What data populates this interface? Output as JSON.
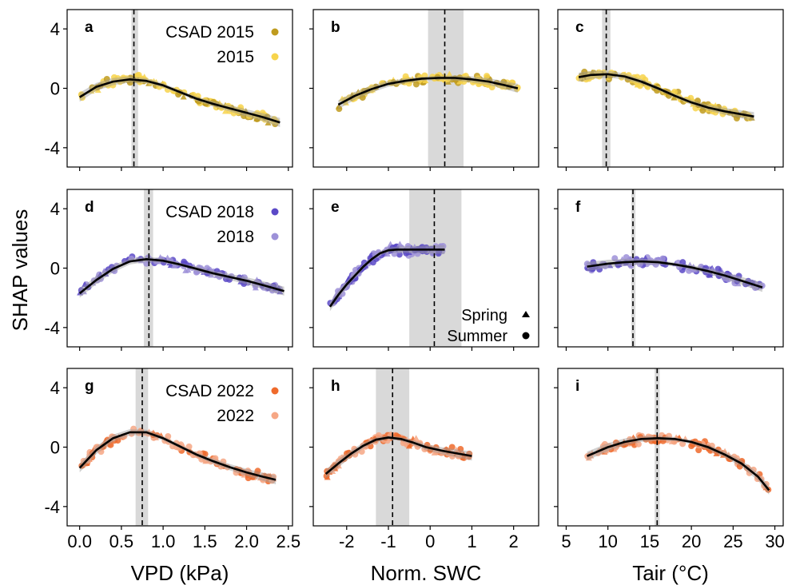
{
  "figure": {
    "ylabel": "SHAP values",
    "xlabels": [
      "VPD (kPa)",
      "Norm. SWC",
      "Tair (°C)"
    ],
    "shape_legend": {
      "spring": "Spring",
      "summer": "Summer"
    }
  },
  "colors": {
    "2015_csad": "#bf9b1e",
    "2015": "#f7d44c",
    "2018_csad": "#5b49c7",
    "2018": "#9d91d8",
    "2022_csad": "#ef6a2c",
    "2022": "#f6a785",
    "fit": "#000000",
    "band": "#d9d9d9"
  },
  "chart_data": [
    {
      "type": "scatter",
      "panel": "a",
      "row_year": "2015",
      "x_var": "VPD (kPa)",
      "threshold": 0.65,
      "threshold_band": [
        0.62,
        0.7
      ],
      "xlim": [
        -0.15,
        2.55
      ],
      "ylim": [
        -5.3,
        5.3
      ],
      "legend": [
        "CSAD 2015",
        "2015"
      ],
      "fit_x": [
        0,
        0.2,
        0.4,
        0.6,
        0.8,
        1.0,
        1.2,
        1.4,
        1.6,
        1.8,
        2.0,
        2.2,
        2.4
      ],
      "fit_y": [
        -0.6,
        0.1,
        0.45,
        0.6,
        0.5,
        0.2,
        -0.25,
        -0.7,
        -1.05,
        -1.35,
        -1.65,
        -1.95,
        -2.3
      ]
    },
    {
      "type": "scatter",
      "panel": "b",
      "row_year": "2015",
      "x_var": "Norm. SWC",
      "threshold": 0.35,
      "threshold_band": [
        -0.05,
        0.8
      ],
      "xlim": [
        -2.8,
        2.6
      ],
      "ylim": [
        -5.3,
        5.3
      ],
      "fit_x": [
        -2.2,
        -1.8,
        -1.4,
        -1.0,
        -0.6,
        -0.2,
        0.2,
        0.6,
        1.0,
        1.4,
        1.8,
        2.1
      ],
      "fit_y": [
        -1.1,
        -0.5,
        -0.05,
        0.3,
        0.5,
        0.65,
        0.7,
        0.7,
        0.6,
        0.45,
        0.2,
        0.0
      ]
    },
    {
      "type": "scatter",
      "panel": "c",
      "row_year": "2015",
      "x_var": "Tair (°C)",
      "threshold": 9.8,
      "threshold_band": [
        9.3,
        10.3
      ],
      "xlim": [
        4.0,
        31.0
      ],
      "ylim": [
        -5.3,
        5.3
      ],
      "fit_x": [
        6.5,
        8,
        10,
        12,
        14,
        16,
        18,
        20,
        22,
        24,
        26,
        27.5
      ],
      "fit_y": [
        0.75,
        0.9,
        0.95,
        0.8,
        0.45,
        0.0,
        -0.5,
        -0.95,
        -1.3,
        -1.55,
        -1.75,
        -1.9
      ]
    },
    {
      "type": "scatter",
      "panel": "d",
      "row_year": "2018",
      "x_var": "VPD (kPa)",
      "threshold": 0.83,
      "threshold_band": [
        0.77,
        0.88
      ],
      "xlim": [
        -0.15,
        2.55
      ],
      "ylim": [
        -5.3,
        5.3
      ],
      "legend": [
        "CSAD 2018",
        "2018"
      ],
      "fit_x": [
        0,
        0.2,
        0.4,
        0.6,
        0.8,
        1.0,
        1.2,
        1.4,
        1.6,
        1.8,
        2.0,
        2.2,
        2.45
      ],
      "fit_y": [
        -1.7,
        -0.8,
        -0.05,
        0.45,
        0.6,
        0.5,
        0.25,
        -0.05,
        -0.35,
        -0.6,
        -0.85,
        -1.15,
        -1.55
      ]
    },
    {
      "type": "scatter",
      "panel": "e",
      "row_year": "2018",
      "x_var": "Norm. SWC",
      "threshold": 0.1,
      "threshold_band": [
        -0.5,
        0.75
      ],
      "xlim": [
        -2.8,
        2.6
      ],
      "ylim": [
        -5.3,
        5.3
      ],
      "shape_legend": true,
      "fit_x": [
        -2.4,
        -2.2,
        -2.0,
        -1.8,
        -1.6,
        -1.4,
        -1.2,
        -1.0,
        -0.8,
        -0.4,
        0.0,
        0.35
      ],
      "fit_y": [
        -2.6,
        -1.8,
        -1.1,
        -0.5,
        0.1,
        0.6,
        1.0,
        1.2,
        1.25,
        1.25,
        1.25,
        1.25
      ]
    },
    {
      "type": "scatter",
      "panel": "f",
      "row_year": "2018",
      "x_var": "Tair (°C)",
      "threshold": 13.0,
      "threshold_band": [
        12.8,
        13.3
      ],
      "xlim": [
        4.0,
        31.0
      ],
      "ylim": [
        -5.3,
        5.3
      ],
      "fit_x": [
        7.5,
        10,
        12,
        14,
        16,
        18,
        20,
        22,
        24,
        26,
        28.5
      ],
      "fit_y": [
        0.1,
        0.3,
        0.4,
        0.45,
        0.4,
        0.25,
        0.05,
        -0.2,
        -0.5,
        -0.85,
        -1.3
      ]
    },
    {
      "type": "scatter",
      "panel": "g",
      "row_year": "2022",
      "x_var": "VPD (kPa)",
      "threshold": 0.75,
      "threshold_band": [
        0.67,
        0.82
      ],
      "xlim": [
        -0.15,
        2.55
      ],
      "ylim": [
        -5.3,
        5.3
      ],
      "legend": [
        "CSAD 2022",
        "2022"
      ],
      "fit_x": [
        0,
        0.2,
        0.4,
        0.6,
        0.8,
        1.0,
        1.2,
        1.4,
        1.6,
        1.8,
        2.0,
        2.2,
        2.35
      ],
      "fit_y": [
        -1.4,
        -0.2,
        0.6,
        1.0,
        1.0,
        0.6,
        0.05,
        -0.5,
        -0.95,
        -1.35,
        -1.7,
        -2.0,
        -2.2
      ]
    },
    {
      "type": "scatter",
      "panel": "h",
      "row_year": "2022",
      "x_var": "Norm. SWC",
      "threshold": -0.9,
      "threshold_band": [
        -1.3,
        -0.5
      ],
      "xlim": [
        -2.8,
        2.6
      ],
      "ylim": [
        -5.3,
        5.3
      ],
      "fit_x": [
        -2.5,
        -2.2,
        -1.9,
        -1.6,
        -1.3,
        -1.0,
        -0.7,
        -0.4,
        -0.1,
        0.3,
        0.7,
        1.0
      ],
      "fit_y": [
        -1.8,
        -1.1,
        -0.45,
        0.1,
        0.5,
        0.65,
        0.55,
        0.3,
        0.0,
        -0.25,
        -0.45,
        -0.6
      ]
    },
    {
      "type": "scatter",
      "panel": "i",
      "row_year": "2022",
      "x_var": "Tair (°C)",
      "threshold": 15.9,
      "threshold_band": [
        15.6,
        16.2
      ],
      "xlim": [
        4.0,
        31.0
      ],
      "ylim": [
        -5.3,
        5.3
      ],
      "fit_x": [
        7.5,
        10,
        12,
        14,
        16,
        18,
        20,
        22,
        24,
        26,
        28,
        29.3
      ],
      "fit_y": [
        -0.6,
        0.0,
        0.35,
        0.55,
        0.6,
        0.55,
        0.35,
        0.0,
        -0.5,
        -1.1,
        -2.0,
        -2.9
      ]
    }
  ],
  "axes": {
    "y_ticks": [
      4,
      0,
      -4
    ],
    "y_tick_labels": [
      "4",
      "0",
      "-4"
    ],
    "vpd_ticks": [
      0.0,
      0.5,
      1.0,
      1.5,
      2.0,
      2.5
    ],
    "vpd_tick_labels": [
      "0.0",
      "0.5",
      "1.0",
      "1.5",
      "2.0",
      "2.5"
    ],
    "swc_ticks": [
      -2,
      -1,
      0,
      1,
      2
    ],
    "swc_tick_labels": [
      "-2",
      "-1",
      "0",
      "1",
      "2"
    ],
    "tair_ticks": [
      5,
      10,
      15,
      20,
      25,
      30
    ],
    "tair_tick_labels": [
      "5",
      "10",
      "15",
      "20",
      "25",
      "30"
    ]
  }
}
